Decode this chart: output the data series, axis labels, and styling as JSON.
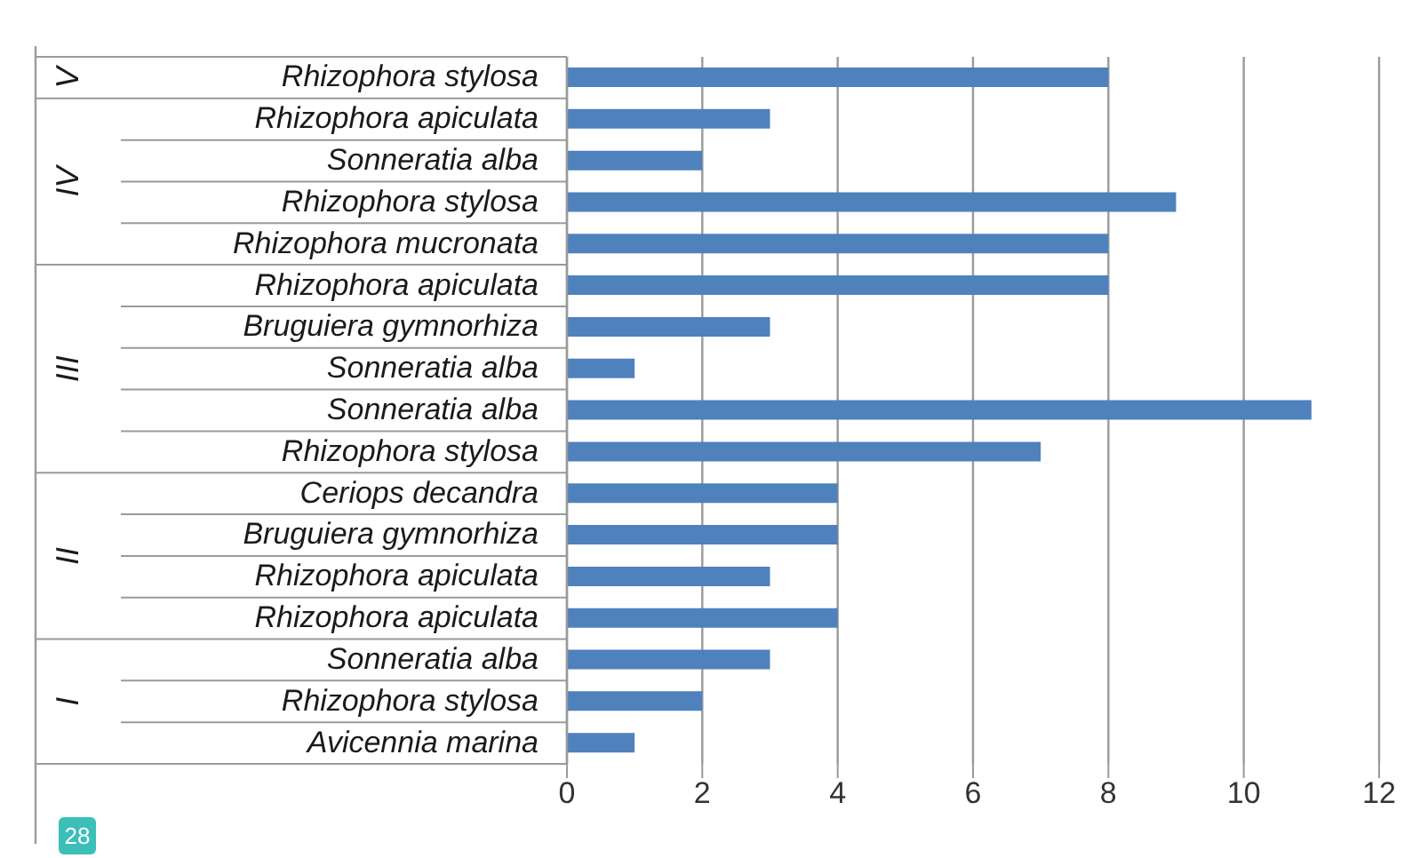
{
  "chart_data": {
    "type": "bar",
    "orientation": "horizontal",
    "categories": [
      "Rhizophora stylosa",
      "Rhizophora apiculata",
      "Sonneratia alba",
      "Rhizophora stylosa",
      "Rhizophora mucronata",
      "Rhizophora apiculata",
      "Bruguiera gymnorhiza",
      "Sonneratia alba",
      "Sonneratia alba",
      "Rhizophora stylosa",
      "Ceriops decandra",
      "Bruguiera gymnorhiza",
      "Rhizophora apiculata",
      "Rhizophora apiculata",
      "Sonneratia alba",
      "Rhizophora stylosa",
      "Avicennia marina"
    ],
    "values": [
      8,
      3,
      2,
      9,
      8,
      8,
      3,
      1,
      11,
      7,
      4,
      4,
      3,
      4,
      3,
      2,
      1
    ],
    "color": "#4f81bd",
    "xlim": [
      0,
      12
    ],
    "xticks": [
      0,
      2,
      4,
      6,
      8,
      10,
      12
    ],
    "grid": "x",
    "annotations": [
      "V",
      "IV",
      "III",
      "II",
      "I",
      "28"
    ]
  }
}
